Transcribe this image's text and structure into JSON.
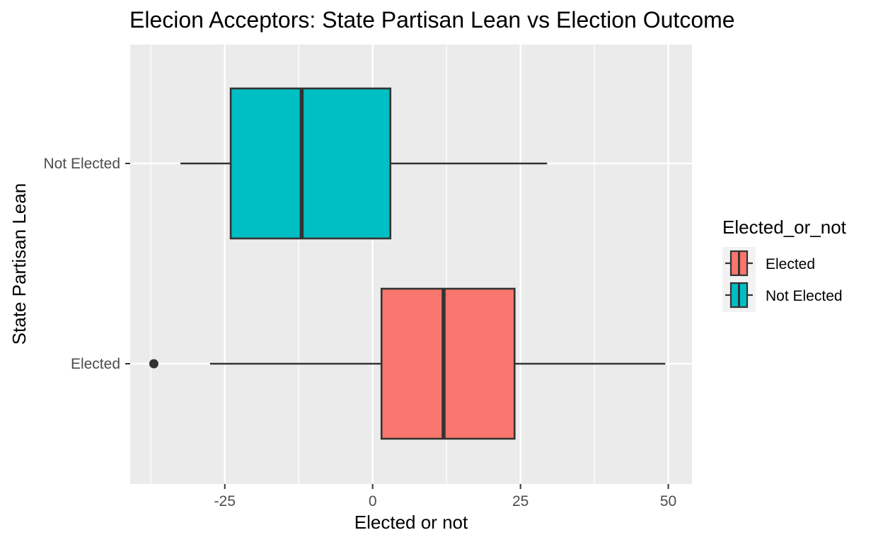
{
  "chart_data": {
    "type": "boxplot",
    "title": "Elecion Acceptors: State Partisan Lean vs Election Outcome",
    "xlabel": "Elected or not",
    "ylabel": "State Partisan Lean",
    "orientation": "horizontal",
    "xlim": [
      -41,
      54
    ],
    "x_ticks": [
      -25,
      0,
      25,
      50
    ],
    "x_tick_labels": [
      "-25",
      "0",
      "25",
      "50"
    ],
    "categories": [
      "Elected",
      "Not Elected"
    ],
    "grid": true,
    "legend": {
      "title": "Elected_or_not",
      "position": "right",
      "entries": [
        "Elected",
        "Not Elected"
      ]
    },
    "series": [
      {
        "name": "Elected",
        "color": "#F8766D",
        "whisker_low": -27.5,
        "q1": 1.5,
        "median": 12,
        "q3": 24,
        "whisker_high": 49.5,
        "outliers": [
          -37
        ]
      },
      {
        "name": "Not Elected",
        "color": "#00BFC4",
        "whisker_low": -32.5,
        "q1": -24,
        "median": -12,
        "q3": 3,
        "whisker_high": 29.5,
        "outliers": []
      }
    ]
  }
}
